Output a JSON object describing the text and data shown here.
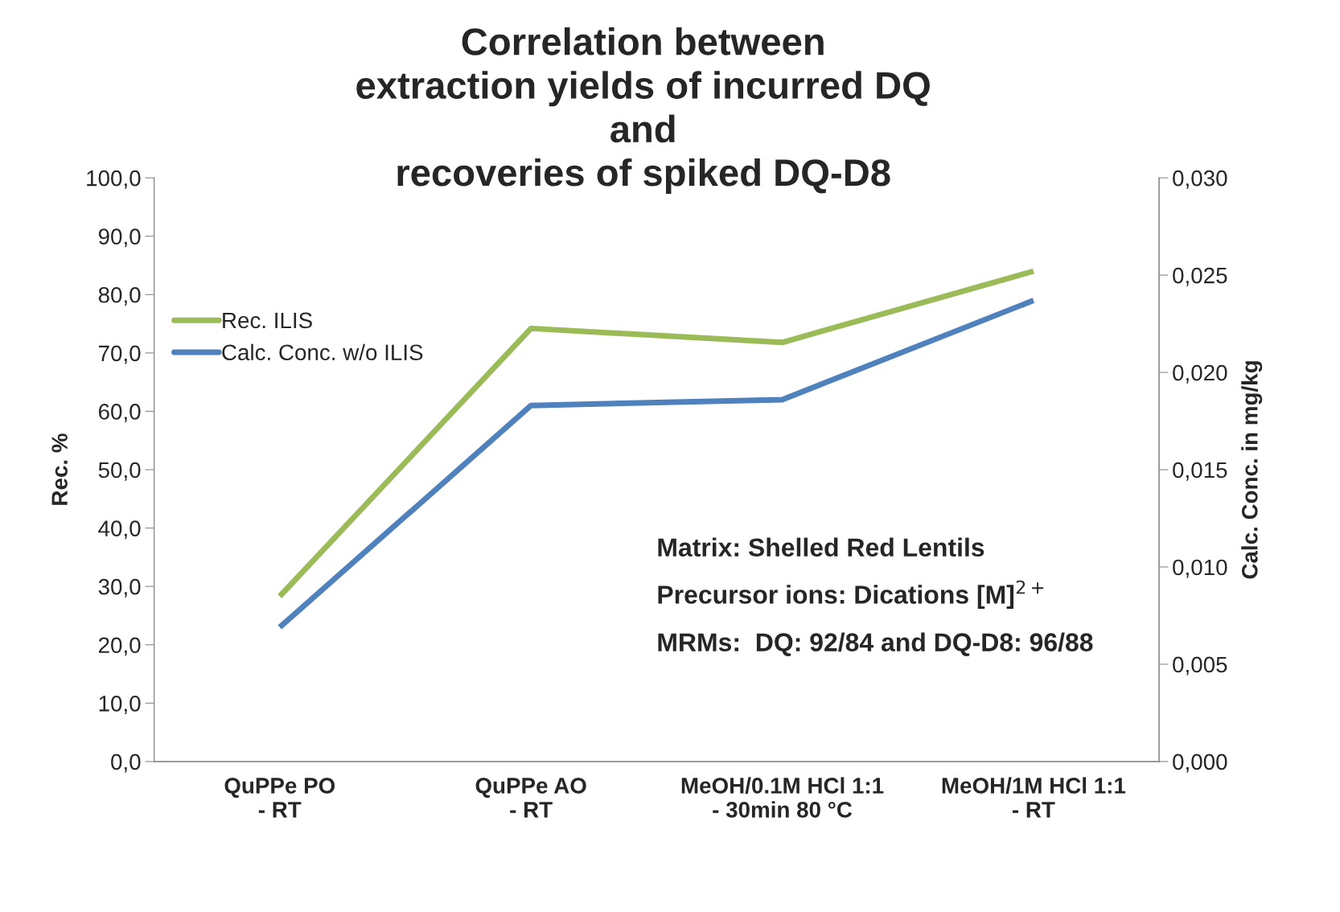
{
  "chart_data": {
    "type": "line",
    "title": "Correlation between\nextraction yields of incurred DQ\nand\nrecoveries of spiked DQ-D8",
    "categories": [
      "QuPPe PO\n- RT",
      "QuPPe AO\n- RT",
      "MeOH/0.1M HCl 1:1\n- 30min 80 °C",
      "MeOH/1M HCl 1:1\n- RT"
    ],
    "series": [
      {
        "name": "Rec. ILIS",
        "color": "#9bbb59",
        "values": [
          28.3,
          74.2,
          71.8,
          84.0
        ]
      },
      {
        "name": "Calc. Conc. w/o ILIS",
        "color": "#4f81bd",
        "axis": "y2",
        "values": [
          0.0069,
          0.0183,
          0.0186,
          0.0237
        ]
      }
    ],
    "ylabel": "Rec. %",
    "y2label": "Calc. Conc. in mg/kg",
    "ylim": [
      0,
      100
    ],
    "yticks": [
      {
        "value": 0,
        "label": "0,0"
      },
      {
        "value": 10,
        "label": "10,0"
      },
      {
        "value": 20,
        "label": "20,0"
      },
      {
        "value": 30,
        "label": "30,0"
      },
      {
        "value": 40,
        "label": "40,0"
      },
      {
        "value": 50,
        "label": "50,0"
      },
      {
        "value": 60,
        "label": "60,0"
      },
      {
        "value": 70,
        "label": "70,0"
      },
      {
        "value": 80,
        "label": "80,0"
      },
      {
        "value": 90,
        "label": "90,0"
      },
      {
        "value": 100,
        "label": "100,0"
      }
    ],
    "y2lim": [
      0,
      0.03
    ],
    "y2ticks": [
      {
        "value": 0,
        "label": "0,000"
      },
      {
        "value": 0.005,
        "label": "0,005"
      },
      {
        "value": 0.01,
        "label": "0,010"
      },
      {
        "value": 0.015,
        "label": "0,015"
      },
      {
        "value": 0.02,
        "label": "0,020"
      },
      {
        "value": 0.025,
        "label": "0,025"
      },
      {
        "value": 0.03,
        "label": "0,030"
      }
    ],
    "annotations": [
      "Matrix: Shelled Red Lentils",
      "Precursor ions: Dications [M]$^{2+}$",
      "MRMs:  DQ: 92/84 and DQ-D8: 96/88"
    ],
    "legend": "left",
    "grid": false,
    "marker": "none",
    "line_style": "solid"
  }
}
